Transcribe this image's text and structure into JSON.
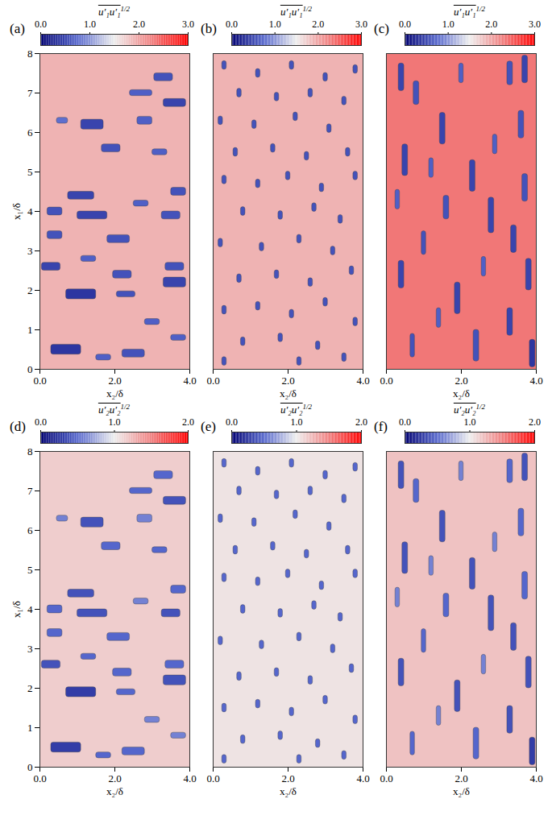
{
  "chart_data": {
    "type": "field_map",
    "xlabel": "x₂/δ",
    "ylabel": "x₁/δ",
    "xlim": [
      0,
      4
    ],
    "ylim": [
      0,
      8
    ],
    "xticks": [
      0,
      2,
      4
    ],
    "yticks": [
      0,
      1,
      2,
      3,
      4,
      5,
      6,
      7,
      8
    ],
    "colorbar_colors": [
      "#000070",
      "#5566cc",
      "#eeeeee",
      "#f08080",
      "#ff0000"
    ],
    "rows": [
      {
        "label": "u′₁u′₁",
        "label_exponent": "1/2",
        "colorbar_range": [
          0,
          3
        ],
        "colorbar_ticks": [
          0,
          1,
          2,
          3
        ],
        "letters": [
          "(a)",
          "(b)",
          "(c)"
        ]
      },
      {
        "label": "u′₂u′₂",
        "label_exponent": "1/2",
        "colorbar_range": [
          0,
          2
        ],
        "colorbar_ticks": [
          0,
          1,
          2
        ],
        "letters": [
          "(d)",
          "(e)",
          "(f)"
        ]
      }
    ],
    "columns": [
      {
        "background": [
          1.9,
          1.15
        ],
        "spots": [
          {
            "x2": 3.3,
            "x1": 7.4,
            "w": 0.5,
            "h": 0.2,
            "v": [
              0.6,
              0.5
            ]
          },
          {
            "x2": 2.7,
            "x1": 7.0,
            "w": 0.6,
            "h": 0.15,
            "v": [
              0.7,
              0.5
            ]
          },
          {
            "x2": 3.6,
            "x1": 6.75,
            "w": 0.6,
            "h": 0.2,
            "v": [
              0.5,
              0.4
            ]
          },
          {
            "x2": 1.4,
            "x1": 6.2,
            "w": 0.6,
            "h": 0.25,
            "v": [
              0.5,
              0.4
            ]
          },
          {
            "x2": 2.8,
            "x1": 6.3,
            "w": 0.4,
            "h": 0.2,
            "v": [
              0.7,
              0.6
            ]
          },
          {
            "x2": 0.6,
            "x1": 6.3,
            "w": 0.3,
            "h": 0.15,
            "v": [
              0.8,
              0.6
            ]
          },
          {
            "x2": 1.9,
            "x1": 5.6,
            "w": 0.5,
            "h": 0.2,
            "v": [
              0.6,
              0.5
            ]
          },
          {
            "x2": 3.2,
            "x1": 5.5,
            "w": 0.4,
            "h": 0.15,
            "v": [
              0.7,
              0.5
            ]
          },
          {
            "x2": 1.1,
            "x1": 4.4,
            "w": 0.7,
            "h": 0.2,
            "v": [
              0.5,
              0.4
            ]
          },
          {
            "x2": 1.4,
            "x1": 3.9,
            "w": 0.8,
            "h": 0.2,
            "v": [
              0.5,
              0.4
            ]
          },
          {
            "x2": 0.4,
            "x1": 4.0,
            "w": 0.4,
            "h": 0.2,
            "v": [
              0.6,
              0.5
            ]
          },
          {
            "x2": 2.7,
            "x1": 4.2,
            "w": 0.4,
            "h": 0.15,
            "v": [
              0.7,
              0.6
            ]
          },
          {
            "x2": 3.7,
            "x1": 4.5,
            "w": 0.4,
            "h": 0.2,
            "v": [
              0.6,
              0.5
            ]
          },
          {
            "x2": 3.5,
            "x1": 3.9,
            "w": 0.5,
            "h": 0.2,
            "v": [
              0.6,
              0.4
            ]
          },
          {
            "x2": 0.4,
            "x1": 3.4,
            "w": 0.4,
            "h": 0.2,
            "v": [
              0.6,
              0.5
            ]
          },
          {
            "x2": 2.1,
            "x1": 3.3,
            "w": 0.6,
            "h": 0.2,
            "v": [
              0.6,
              0.5
            ]
          },
          {
            "x2": 0.3,
            "x1": 2.6,
            "w": 0.5,
            "h": 0.2,
            "v": [
              0.5,
              0.4
            ]
          },
          {
            "x2": 1.3,
            "x1": 2.8,
            "w": 0.4,
            "h": 0.15,
            "v": [
              0.7,
              0.5
            ]
          },
          {
            "x2": 2.2,
            "x1": 2.4,
            "w": 0.5,
            "h": 0.2,
            "v": [
              0.6,
              0.5
            ]
          },
          {
            "x2": 3.6,
            "x1": 2.6,
            "w": 0.5,
            "h": 0.2,
            "v": [
              0.6,
              0.5
            ]
          },
          {
            "x2": 1.1,
            "x1": 1.9,
            "w": 0.8,
            "h": 0.25,
            "v": [
              0.4,
              0.3
            ]
          },
          {
            "x2": 2.3,
            "x1": 1.9,
            "w": 0.5,
            "h": 0.15,
            "v": [
              0.6,
              0.5
            ]
          },
          {
            "x2": 3.6,
            "x1": 2.2,
            "w": 0.6,
            "h": 0.25,
            "v": [
              0.5,
              0.4
            ]
          },
          {
            "x2": 3.0,
            "x1": 1.2,
            "w": 0.4,
            "h": 0.15,
            "v": [
              0.7,
              0.6
            ]
          },
          {
            "x2": 0.7,
            "x1": 0.5,
            "w": 0.8,
            "h": 0.25,
            "v": [
              0.4,
              0.3
            ]
          },
          {
            "x2": 2.5,
            "x1": 0.4,
            "w": 0.6,
            "h": 0.2,
            "v": [
              0.6,
              0.5
            ]
          },
          {
            "x2": 1.7,
            "x1": 0.3,
            "w": 0.4,
            "h": 0.15,
            "v": [
              0.7,
              0.5
            ]
          },
          {
            "x2": 3.7,
            "x1": 0.8,
            "w": 0.4,
            "h": 0.15,
            "v": [
              0.7,
              0.6
            ]
          }
        ]
      },
      {
        "background": [
          1.9,
          1.05
        ],
        "spots": [
          {
            "x2": 0.3,
            "x1": 7.7,
            "w": 0.12,
            "h": 0.22,
            "v": [
              0.6,
              0.5
            ]
          },
          {
            "x2": 1.2,
            "x1": 7.5,
            "w": 0.12,
            "h": 0.22,
            "v": [
              0.6,
              0.5
            ]
          },
          {
            "x2": 2.1,
            "x1": 7.7,
            "w": 0.12,
            "h": 0.22,
            "v": [
              0.6,
              0.5
            ]
          },
          {
            "x2": 3.0,
            "x1": 7.4,
            "w": 0.12,
            "h": 0.22,
            "v": [
              0.6,
              0.5
            ]
          },
          {
            "x2": 3.8,
            "x1": 7.6,
            "w": 0.12,
            "h": 0.22,
            "v": [
              0.6,
              0.5
            ]
          },
          {
            "x2": 0.7,
            "x1": 7.0,
            "w": 0.12,
            "h": 0.22,
            "v": [
              0.6,
              0.5
            ]
          },
          {
            "x2": 1.7,
            "x1": 6.9,
            "w": 0.12,
            "h": 0.22,
            "v": [
              0.6,
              0.5
            ]
          },
          {
            "x2": 2.6,
            "x1": 7.0,
            "w": 0.12,
            "h": 0.22,
            "v": [
              0.6,
              0.5
            ]
          },
          {
            "x2": 3.5,
            "x1": 6.8,
            "w": 0.12,
            "h": 0.22,
            "v": [
              0.6,
              0.5
            ]
          },
          {
            "x2": 0.2,
            "x1": 6.3,
            "w": 0.12,
            "h": 0.22,
            "v": [
              0.6,
              0.5
            ]
          },
          {
            "x2": 1.1,
            "x1": 6.2,
            "w": 0.12,
            "h": 0.22,
            "v": [
              0.6,
              0.5
            ]
          },
          {
            "x2": 2.2,
            "x1": 6.4,
            "w": 0.12,
            "h": 0.22,
            "v": [
              0.6,
              0.5
            ]
          },
          {
            "x2": 3.1,
            "x1": 6.1,
            "w": 0.12,
            "h": 0.22,
            "v": [
              0.6,
              0.5
            ]
          },
          {
            "x2": 0.6,
            "x1": 5.5,
            "w": 0.12,
            "h": 0.22,
            "v": [
              0.6,
              0.5
            ]
          },
          {
            "x2": 1.6,
            "x1": 5.6,
            "w": 0.12,
            "h": 0.22,
            "v": [
              0.6,
              0.5
            ]
          },
          {
            "x2": 2.5,
            "x1": 5.4,
            "w": 0.12,
            "h": 0.22,
            "v": [
              0.6,
              0.5
            ]
          },
          {
            "x2": 3.6,
            "x1": 5.5,
            "w": 0.12,
            "h": 0.22,
            "v": [
              0.6,
              0.5
            ]
          },
          {
            "x2": 0.3,
            "x1": 4.8,
            "w": 0.12,
            "h": 0.22,
            "v": [
              0.6,
              0.5
            ]
          },
          {
            "x2": 1.2,
            "x1": 4.7,
            "w": 0.12,
            "h": 0.22,
            "v": [
              0.6,
              0.5
            ]
          },
          {
            "x2": 2.0,
            "x1": 4.9,
            "w": 0.12,
            "h": 0.22,
            "v": [
              0.6,
              0.5
            ]
          },
          {
            "x2": 2.9,
            "x1": 4.6,
            "w": 0.12,
            "h": 0.22,
            "v": [
              0.6,
              0.5
            ]
          },
          {
            "x2": 3.8,
            "x1": 4.9,
            "w": 0.12,
            "h": 0.22,
            "v": [
              0.6,
              0.5
            ]
          },
          {
            "x2": 0.8,
            "x1": 4.0,
            "w": 0.12,
            "h": 0.22,
            "v": [
              0.6,
              0.5
            ]
          },
          {
            "x2": 1.8,
            "x1": 3.9,
            "w": 0.12,
            "h": 0.22,
            "v": [
              0.6,
              0.5
            ]
          },
          {
            "x2": 2.7,
            "x1": 4.1,
            "w": 0.12,
            "h": 0.22,
            "v": [
              0.6,
              0.5
            ]
          },
          {
            "x2": 3.4,
            "x1": 3.8,
            "w": 0.12,
            "h": 0.22,
            "v": [
              0.6,
              0.5
            ]
          },
          {
            "x2": 0.2,
            "x1": 3.2,
            "w": 0.12,
            "h": 0.22,
            "v": [
              0.6,
              0.5
            ]
          },
          {
            "x2": 1.3,
            "x1": 3.1,
            "w": 0.12,
            "h": 0.22,
            "v": [
              0.6,
              0.5
            ]
          },
          {
            "x2": 2.3,
            "x1": 3.3,
            "w": 0.12,
            "h": 0.22,
            "v": [
              0.6,
              0.5
            ]
          },
          {
            "x2": 3.2,
            "x1": 3.0,
            "w": 0.12,
            "h": 0.22,
            "v": [
              0.6,
              0.5
            ]
          },
          {
            "x2": 0.7,
            "x1": 2.3,
            "w": 0.12,
            "h": 0.22,
            "v": [
              0.6,
              0.5
            ]
          },
          {
            "x2": 1.7,
            "x1": 2.4,
            "w": 0.12,
            "h": 0.22,
            "v": [
              0.6,
              0.5
            ]
          },
          {
            "x2": 2.6,
            "x1": 2.2,
            "w": 0.12,
            "h": 0.22,
            "v": [
              0.6,
              0.5
            ]
          },
          {
            "x2": 3.7,
            "x1": 2.5,
            "w": 0.12,
            "h": 0.22,
            "v": [
              0.6,
              0.5
            ]
          },
          {
            "x2": 0.3,
            "x1": 1.5,
            "w": 0.12,
            "h": 0.22,
            "v": [
              0.6,
              0.5
            ]
          },
          {
            "x2": 1.2,
            "x1": 1.6,
            "w": 0.12,
            "h": 0.22,
            "v": [
              0.6,
              0.5
            ]
          },
          {
            "x2": 2.1,
            "x1": 1.4,
            "w": 0.12,
            "h": 0.22,
            "v": [
              0.6,
              0.5
            ]
          },
          {
            "x2": 3.0,
            "x1": 1.7,
            "w": 0.12,
            "h": 0.22,
            "v": [
              0.6,
              0.5
            ]
          },
          {
            "x2": 3.8,
            "x1": 1.2,
            "w": 0.12,
            "h": 0.22,
            "v": [
              0.6,
              0.5
            ]
          },
          {
            "x2": 0.8,
            "x1": 0.7,
            "w": 0.12,
            "h": 0.22,
            "v": [
              0.6,
              0.5
            ]
          },
          {
            "x2": 1.8,
            "x1": 0.8,
            "w": 0.12,
            "h": 0.22,
            "v": [
              0.6,
              0.5
            ]
          },
          {
            "x2": 2.8,
            "x1": 0.6,
            "w": 0.12,
            "h": 0.22,
            "v": [
              0.6,
              0.5
            ]
          },
          {
            "x2": 3.5,
            "x1": 0.3,
            "w": 0.12,
            "h": 0.22,
            "v": [
              0.6,
              0.5
            ]
          },
          {
            "x2": 0.3,
            "x1": 0.2,
            "w": 0.12,
            "h": 0.22,
            "v": [
              0.6,
              0.5
            ]
          },
          {
            "x2": 2.3,
            "x1": 0.2,
            "w": 0.12,
            "h": 0.22,
            "v": [
              0.6,
              0.5
            ]
          }
        ]
      },
      {
        "background": [
          2.3,
          1.2
        ],
        "spots": [
          {
            "x2": 3.7,
            "x1": 7.6,
            "w": 0.15,
            "h": 0.7,
            "v": [
              0.5,
              0.4
            ]
          },
          {
            "x2": 3.3,
            "x1": 7.5,
            "w": 0.15,
            "h": 0.6,
            "v": [
              0.6,
              0.5
            ]
          },
          {
            "x2": 0.4,
            "x1": 7.4,
            "w": 0.15,
            "h": 0.7,
            "v": [
              0.5,
              0.4
            ]
          },
          {
            "x2": 0.8,
            "x1": 7.0,
            "w": 0.15,
            "h": 0.6,
            "v": [
              0.6,
              0.5
            ]
          },
          {
            "x2": 2.0,
            "x1": 7.5,
            "w": 0.12,
            "h": 0.5,
            "v": [
              0.7,
              0.6
            ]
          },
          {
            "x2": 1.5,
            "x1": 6.1,
            "w": 0.15,
            "h": 0.8,
            "v": [
              0.5,
              0.4
            ]
          },
          {
            "x2": 3.6,
            "x1": 6.2,
            "w": 0.15,
            "h": 0.7,
            "v": [
              0.6,
              0.5
            ]
          },
          {
            "x2": 2.9,
            "x1": 5.7,
            "w": 0.12,
            "h": 0.5,
            "v": [
              0.7,
              0.6
            ]
          },
          {
            "x2": 0.5,
            "x1": 5.3,
            "w": 0.15,
            "h": 0.8,
            "v": [
              0.5,
              0.4
            ]
          },
          {
            "x2": 1.2,
            "x1": 5.1,
            "w": 0.12,
            "h": 0.5,
            "v": [
              0.7,
              0.6
            ]
          },
          {
            "x2": 2.3,
            "x1": 4.9,
            "w": 0.15,
            "h": 0.8,
            "v": [
              0.5,
              0.4
            ]
          },
          {
            "x2": 3.7,
            "x1": 4.6,
            "w": 0.15,
            "h": 0.7,
            "v": [
              0.6,
              0.5
            ]
          },
          {
            "x2": 1.6,
            "x1": 4.1,
            "w": 0.15,
            "h": 0.6,
            "v": [
              0.6,
              0.5
            ]
          },
          {
            "x2": 0.3,
            "x1": 4.3,
            "w": 0.12,
            "h": 0.5,
            "v": [
              0.7,
              0.6
            ]
          },
          {
            "x2": 2.8,
            "x1": 3.9,
            "w": 0.15,
            "h": 0.9,
            "v": [
              0.5,
              0.4
            ]
          },
          {
            "x2": 3.4,
            "x1": 3.3,
            "w": 0.15,
            "h": 0.7,
            "v": [
              0.5,
              0.4
            ]
          },
          {
            "x2": 1.0,
            "x1": 3.2,
            "w": 0.12,
            "h": 0.6,
            "v": [
              0.6,
              0.5
            ]
          },
          {
            "x2": 3.8,
            "x1": 2.4,
            "w": 0.15,
            "h": 0.8,
            "v": [
              0.5,
              0.4
            ]
          },
          {
            "x2": 2.6,
            "x1": 2.6,
            "w": 0.12,
            "h": 0.5,
            "v": [
              0.7,
              0.6
            ]
          },
          {
            "x2": 0.4,
            "x1": 2.4,
            "w": 0.15,
            "h": 0.7,
            "v": [
              0.5,
              0.4
            ]
          },
          {
            "x2": 1.9,
            "x1": 1.8,
            "w": 0.15,
            "h": 0.8,
            "v": [
              0.5,
              0.4
            ]
          },
          {
            "x2": 1.4,
            "x1": 1.3,
            "w": 0.12,
            "h": 0.5,
            "v": [
              0.7,
              0.6
            ]
          },
          {
            "x2": 3.3,
            "x1": 1.2,
            "w": 0.15,
            "h": 0.7,
            "v": [
              0.5,
              0.4
            ]
          },
          {
            "x2": 2.4,
            "x1": 0.6,
            "w": 0.15,
            "h": 0.8,
            "v": [
              0.6,
              0.5
            ]
          },
          {
            "x2": 3.9,
            "x1": 0.4,
            "w": 0.15,
            "h": 0.7,
            "v": [
              0.4,
              0.3
            ]
          },
          {
            "x2": 0.7,
            "x1": 0.6,
            "w": 0.12,
            "h": 0.6,
            "v": [
              0.6,
              0.5
            ]
          }
        ]
      }
    ]
  }
}
